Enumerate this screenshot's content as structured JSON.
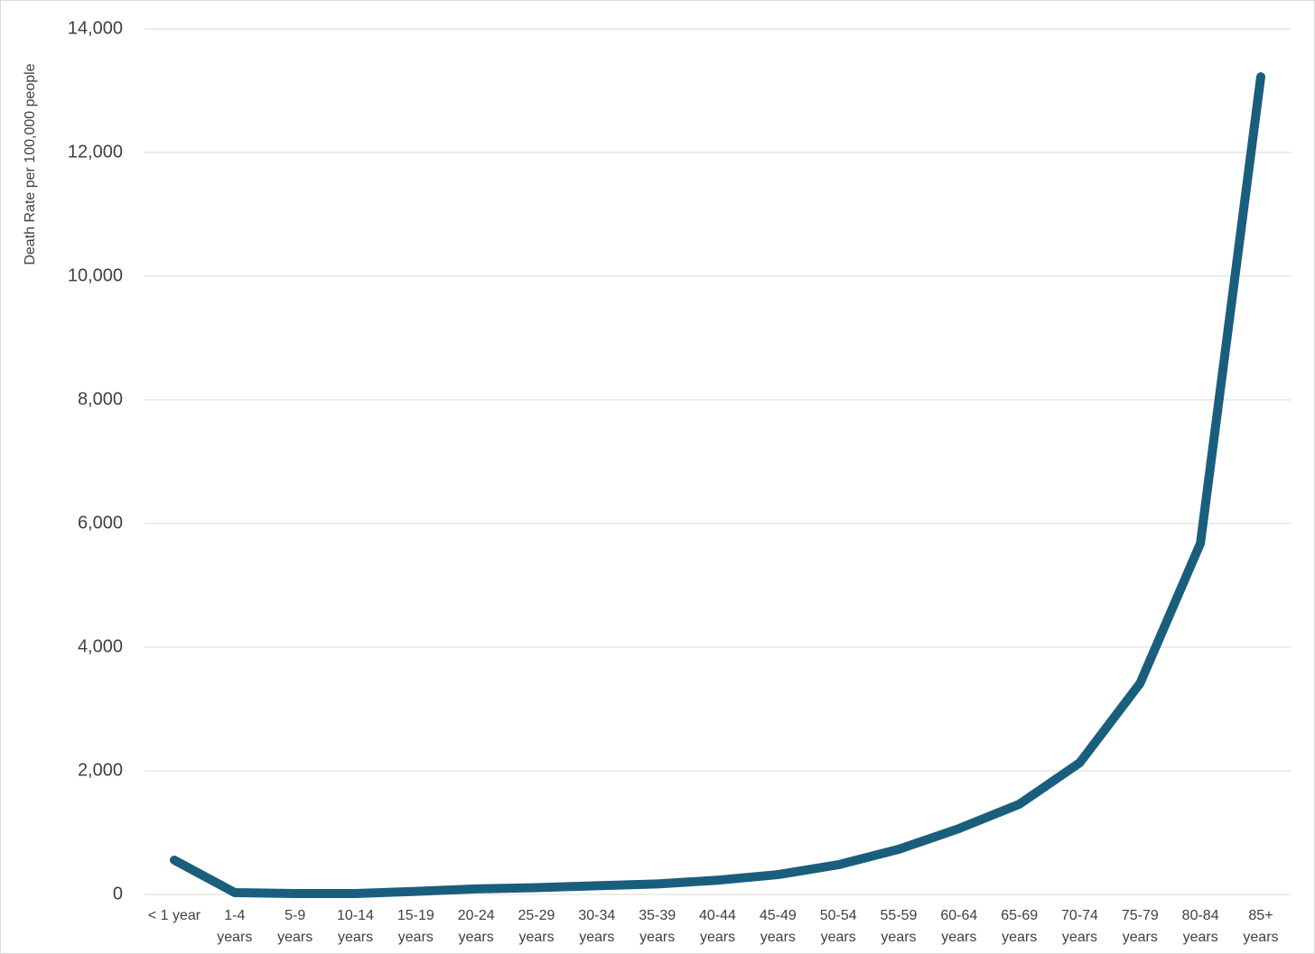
{
  "chart_data": {
    "type": "line",
    "y_label": "Death Rate per 100,000 people",
    "categories": [
      "< 1 year",
      "1-4 years",
      "5-9 years",
      "10-14 years",
      "15-19 years",
      "20-24 years",
      "25-29 years",
      "30-34 years",
      "35-39 years",
      "40-44 years",
      "45-49 years",
      "50-54 years",
      "55-59 years",
      "60-64 years",
      "65-69 years",
      "70-74 years",
      "75-79 years",
      "80-84 years",
      "85+ years"
    ],
    "values": [
      555,
      30,
      14,
      15,
      50,
      90,
      110,
      140,
      170,
      230,
      320,
      480,
      730,
      1065,
      1460,
      2130,
      3415,
      5680,
      13225
    ],
    "color": "#1a5e7e",
    "ylim": [
      0,
      14000
    ],
    "yticks": [
      0,
      {
        "value": 2000,
        "label": "2,000"
      },
      {
        "value": 4000,
        "label": "4,000"
      },
      {
        "value": 6000,
        "label": "6,000"
      },
      {
        "value": 8000,
        "label": "8,000"
      },
      {
        "value": 10000,
        "label": "10,000"
      },
      {
        "value": 12000,
        "label": "12,000"
      },
      {
        "value": 14000,
        "label": "14,000"
      }
    ],
    "grid": true
  }
}
